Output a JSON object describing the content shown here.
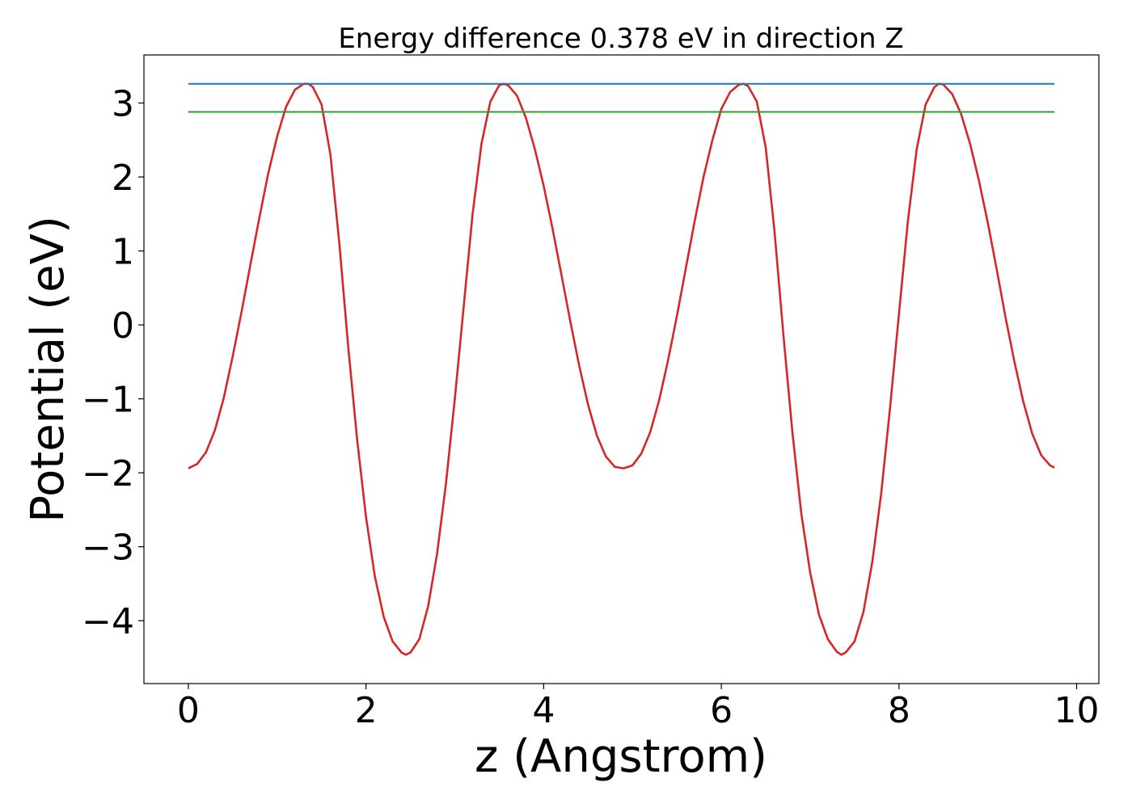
{
  "chart_data": {
    "type": "line",
    "title": "Energy difference 0.378 eV in direction Z",
    "xlabel": "z (Angstrom)",
    "ylabel": "Potential (eV)",
    "xlim": [
      -0.5,
      10.25
    ],
    "ylim": [
      -4.85,
      3.65
    ],
    "xticks": [
      0,
      2,
      4,
      6,
      8,
      10
    ],
    "xtick_labels": [
      "0",
      "2",
      "4",
      "6",
      "8",
      "10"
    ],
    "yticks": [
      -4,
      -3,
      -2,
      -1,
      0,
      1,
      2,
      3
    ],
    "ytick_labels": [
      "−4",
      "−3",
      "−2",
      "−1",
      "0",
      "1",
      "2",
      "3"
    ],
    "grid": false,
    "series": [
      {
        "color": "#d62728",
        "style": "solid",
        "points": [
          [
            0.0,
            -1.94
          ],
          [
            0.1,
            -1.88
          ],
          [
            0.2,
            -1.72
          ],
          [
            0.3,
            -1.42
          ],
          [
            0.4,
            -0.98
          ],
          [
            0.5,
            -0.42
          ],
          [
            0.6,
            0.18
          ],
          [
            0.7,
            0.82
          ],
          [
            0.8,
            1.45
          ],
          [
            0.9,
            2.05
          ],
          [
            1.0,
            2.55
          ],
          [
            1.1,
            2.95
          ],
          [
            1.2,
            3.18
          ],
          [
            1.3,
            3.26
          ],
          [
            1.35,
            3.26
          ],
          [
            1.4,
            3.22
          ],
          [
            1.5,
            2.98
          ],
          [
            1.6,
            2.3
          ],
          [
            1.7,
            1.1
          ],
          [
            1.8,
            -0.3
          ],
          [
            1.9,
            -1.55
          ],
          [
            2.0,
            -2.6
          ],
          [
            2.1,
            -3.4
          ],
          [
            2.2,
            -3.95
          ],
          [
            2.3,
            -4.28
          ],
          [
            2.4,
            -4.43
          ],
          [
            2.45,
            -4.46
          ],
          [
            2.5,
            -4.43
          ],
          [
            2.6,
            -4.25
          ],
          [
            2.7,
            -3.8
          ],
          [
            2.8,
            -3.1
          ],
          [
            2.9,
            -2.15
          ],
          [
            3.0,
            -1.0
          ],
          [
            3.1,
            0.25
          ],
          [
            3.2,
            1.5
          ],
          [
            3.3,
            2.45
          ],
          [
            3.4,
            3.02
          ],
          [
            3.5,
            3.24
          ],
          [
            3.55,
            3.26
          ],
          [
            3.6,
            3.24
          ],
          [
            3.7,
            3.1
          ],
          [
            3.8,
            2.8
          ],
          [
            3.9,
            2.38
          ],
          [
            4.0,
            1.88
          ],
          [
            4.1,
            1.3
          ],
          [
            4.2,
            0.68
          ],
          [
            4.3,
            0.05
          ],
          [
            4.4,
            -0.55
          ],
          [
            4.5,
            -1.08
          ],
          [
            4.6,
            -1.5
          ],
          [
            4.7,
            -1.78
          ],
          [
            4.8,
            -1.92
          ],
          [
            4.9,
            -1.94
          ],
          [
            5.0,
            -1.9
          ],
          [
            5.1,
            -1.74
          ],
          [
            5.2,
            -1.45
          ],
          [
            5.3,
            -1.02
          ],
          [
            5.4,
            -0.48
          ],
          [
            5.5,
            0.12
          ],
          [
            5.6,
            0.76
          ],
          [
            5.7,
            1.4
          ],
          [
            5.8,
            2.0
          ],
          [
            5.9,
            2.5
          ],
          [
            6.0,
            2.92
          ],
          [
            6.1,
            3.15
          ],
          [
            6.2,
            3.25
          ],
          [
            6.25,
            3.26
          ],
          [
            6.3,
            3.23
          ],
          [
            6.4,
            3.02
          ],
          [
            6.5,
            2.4
          ],
          [
            6.6,
            1.25
          ],
          [
            6.7,
            -0.15
          ],
          [
            6.8,
            -1.45
          ],
          [
            6.9,
            -2.55
          ],
          [
            7.0,
            -3.35
          ],
          [
            7.1,
            -3.92
          ],
          [
            7.2,
            -4.25
          ],
          [
            7.3,
            -4.42
          ],
          [
            7.35,
            -4.46
          ],
          [
            7.4,
            -4.43
          ],
          [
            7.5,
            -4.28
          ],
          [
            7.6,
            -3.88
          ],
          [
            7.7,
            -3.2
          ],
          [
            7.8,
            -2.28
          ],
          [
            7.9,
            -1.12
          ],
          [
            8.0,
            0.15
          ],
          [
            8.1,
            1.4
          ],
          [
            8.2,
            2.38
          ],
          [
            8.3,
            2.98
          ],
          [
            8.4,
            3.22
          ],
          [
            8.45,
            3.26
          ],
          [
            8.5,
            3.25
          ],
          [
            8.6,
            3.12
          ],
          [
            8.7,
            2.85
          ],
          [
            8.8,
            2.45
          ],
          [
            8.9,
            1.95
          ],
          [
            9.0,
            1.38
          ],
          [
            9.1,
            0.75
          ],
          [
            9.2,
            0.1
          ],
          [
            9.3,
            -0.5
          ],
          [
            9.4,
            -1.04
          ],
          [
            9.5,
            -1.47
          ],
          [
            9.6,
            -1.76
          ],
          [
            9.7,
            -1.9
          ],
          [
            9.75,
            -1.93
          ]
        ]
      },
      {
        "color": "#1f77b4",
        "style": "solid",
        "points": [
          [
            0.0,
            3.26
          ],
          [
            9.75,
            3.26
          ]
        ]
      },
      {
        "color": "#2ca02c",
        "style": "solid",
        "points": [
          [
            0.0,
            2.88
          ],
          [
            9.75,
            2.88
          ]
        ]
      }
    ]
  }
}
